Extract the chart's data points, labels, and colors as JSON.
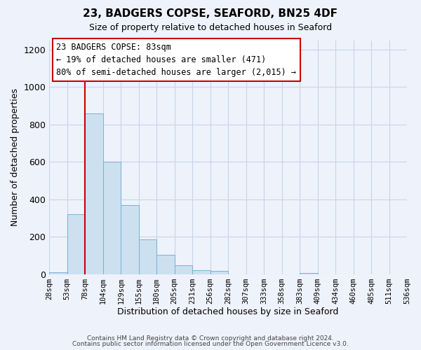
{
  "title": "23, BADGERS COPSE, SEAFORD, BN25 4DF",
  "subtitle": "Size of property relative to detached houses in Seaford",
  "xlabel": "Distribution of detached houses by size in Seaford",
  "ylabel": "Number of detached properties",
  "bar_values": [
    10,
    320,
    860,
    600,
    370,
    185,
    105,
    48,
    20,
    18,
    0,
    0,
    0,
    0,
    7,
    0,
    0,
    0,
    0,
    0
  ],
  "bar_labels": [
    "28sqm",
    "53sqm",
    "78sqm",
    "104sqm",
    "129sqm",
    "155sqm",
    "180sqm",
    "205sqm",
    "231sqm",
    "256sqm",
    "282sqm",
    "307sqm",
    "333sqm",
    "358sqm",
    "383sqm",
    "409sqm",
    "434sqm",
    "460sqm",
    "485sqm",
    "511sqm",
    "536sqm"
  ],
  "bar_color": "#cce0f0",
  "bar_edge_color": "#7ab0d4",
  "vline_x": 2,
  "vline_color": "#cc0000",
  "ylim": [
    0,
    1250
  ],
  "yticks": [
    0,
    200,
    400,
    600,
    800,
    1000,
    1200
  ],
  "annotation_line1": "23 BADGERS COPSE: 83sqm",
  "annotation_line2": "← 19% of detached houses are smaller (471)",
  "annotation_line3": "80% of semi-detached houses are larger (2,015) →",
  "annotation_box_color": "#ffffff",
  "annotation_box_edge": "#cc0000",
  "footer_line1": "Contains HM Land Registry data © Crown copyright and database right 2024.",
  "footer_line2": "Contains public sector information licensed under the Open Government Licence v3.0.",
  "background_color": "#eef2fb",
  "grid_color": "#c8d4e8"
}
